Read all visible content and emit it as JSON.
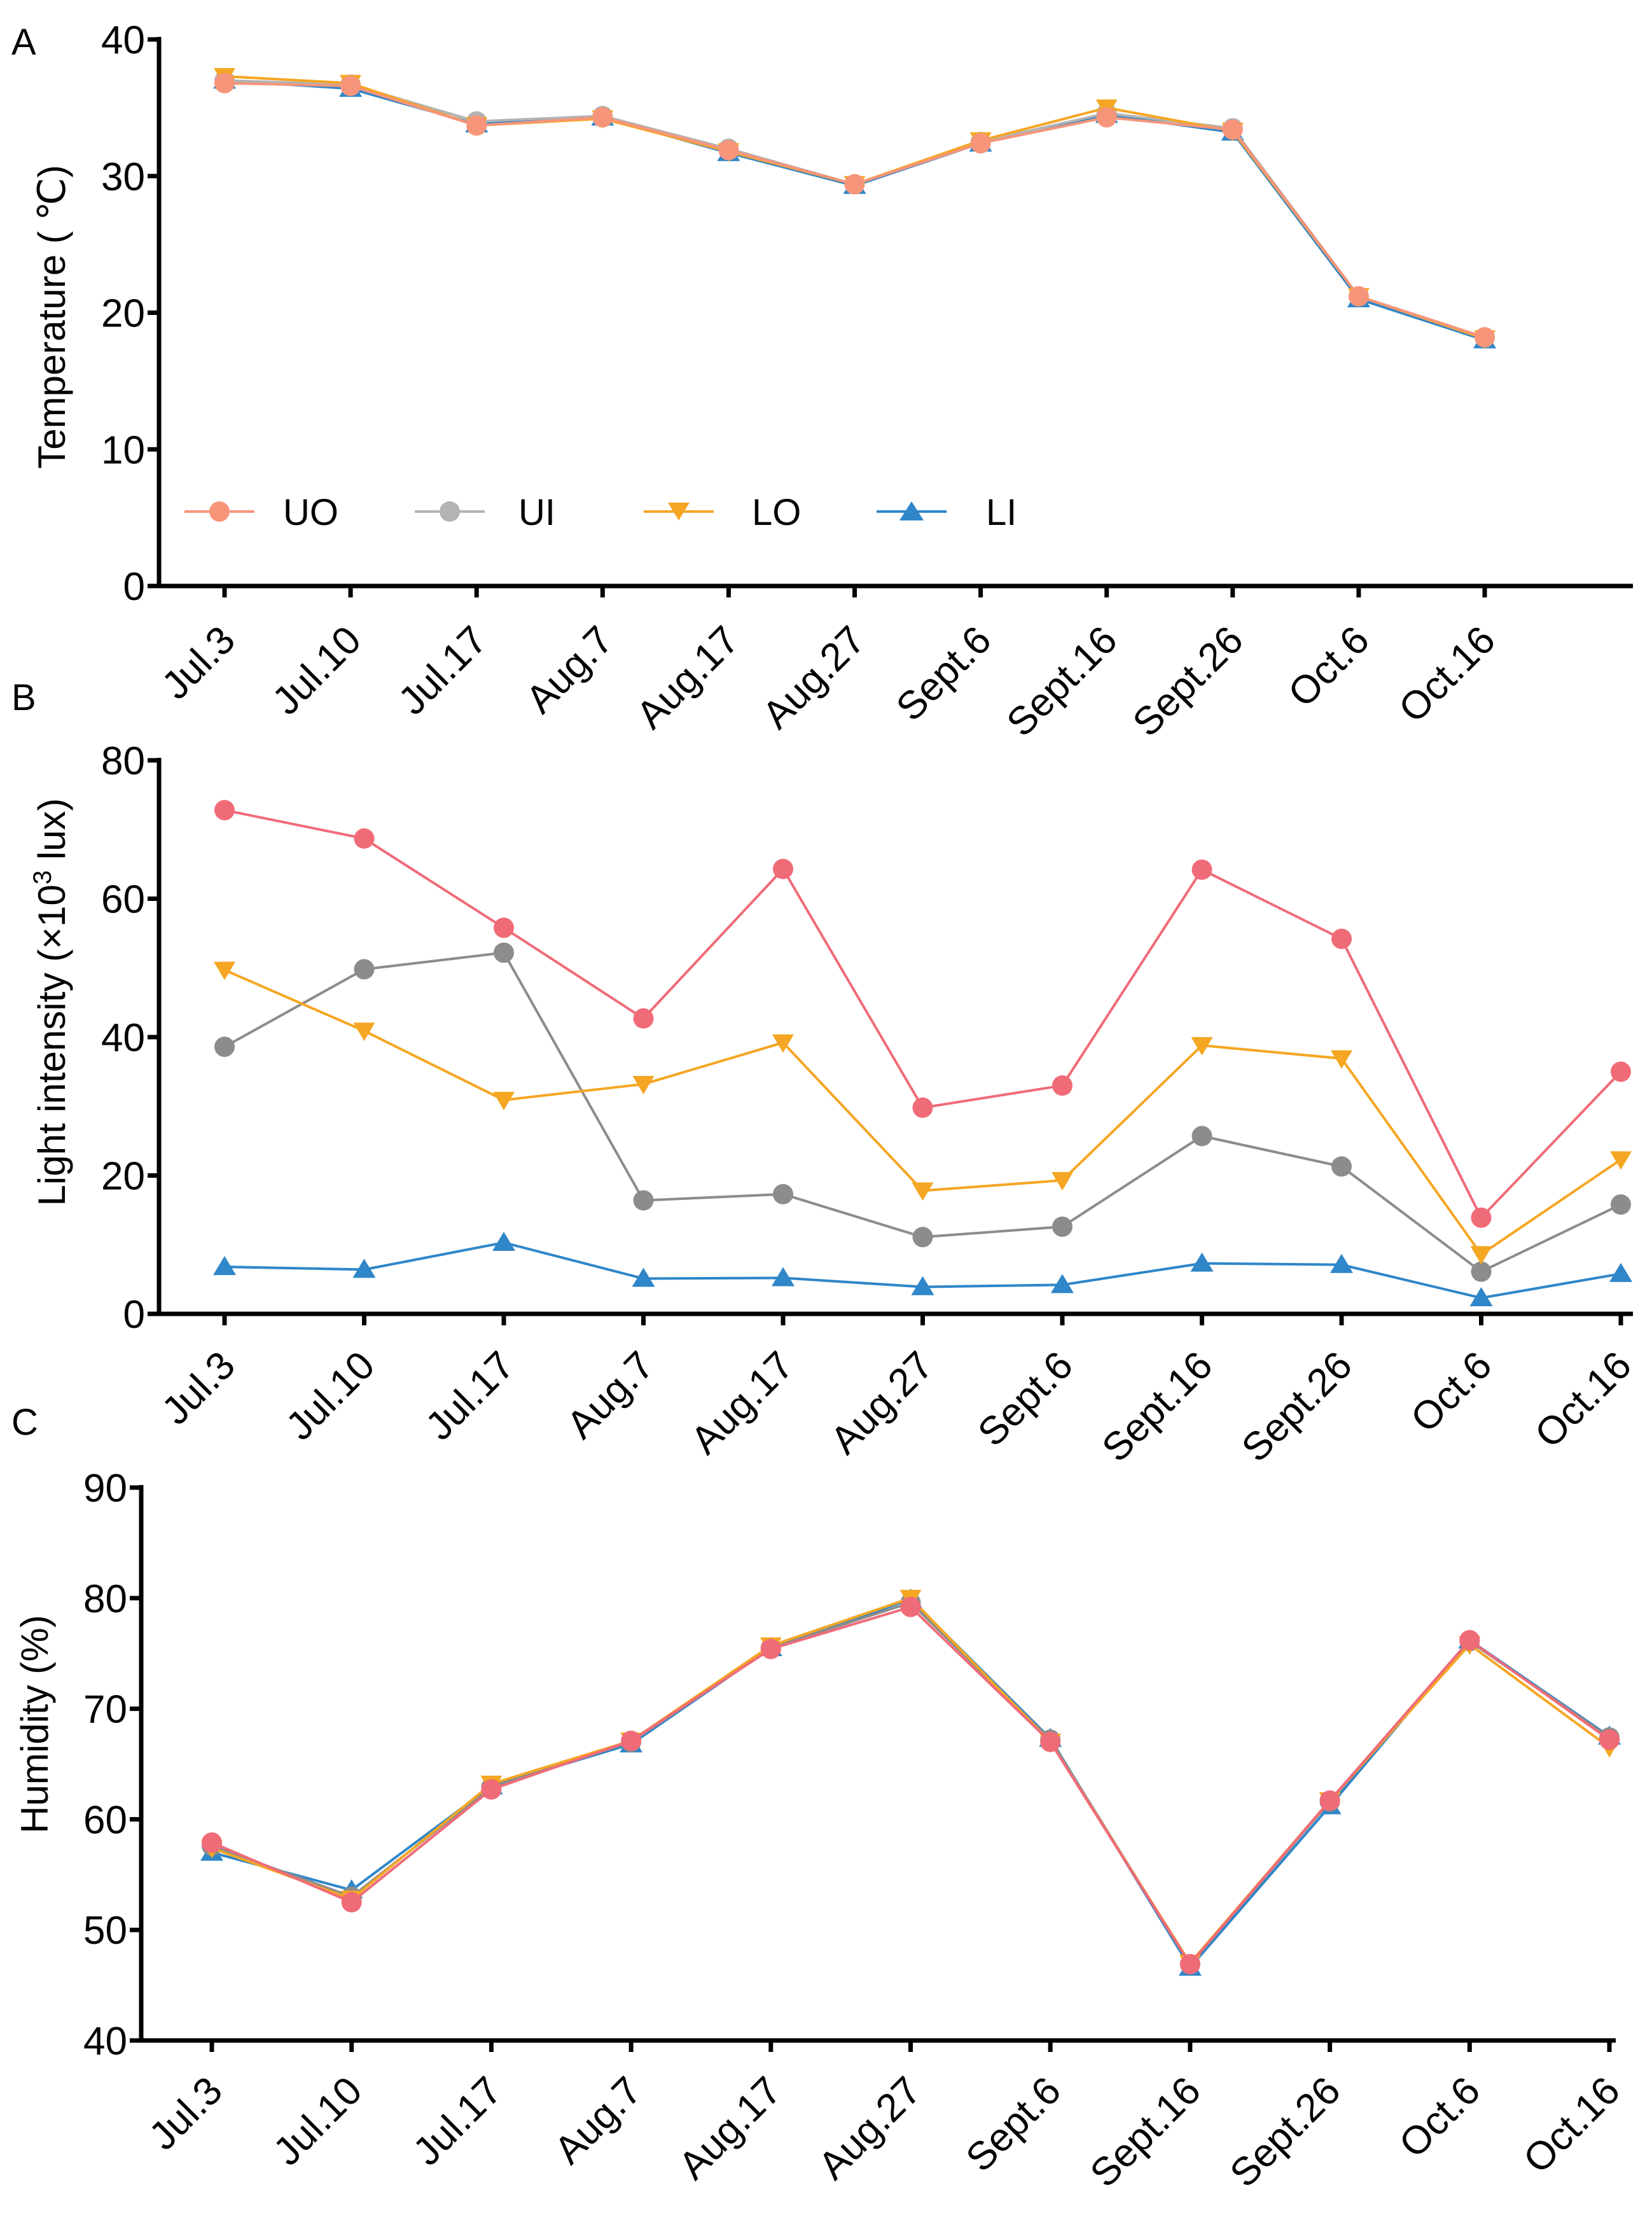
{
  "panels": {
    "A": {
      "letter": "A"
    },
    "B": {
      "letter": "B"
    },
    "C": {
      "letter": "C"
    }
  },
  "chart_data": [
    {
      "id": "A",
      "type": "line",
      "title": "",
      "xlabel": "",
      "ylabel": "Temperature ( ℃)",
      "ylim": [
        0,
        40
      ],
      "yticks": [
        0,
        10,
        20,
        30,
        40
      ],
      "categories": [
        "Jul.3",
        "Jul.10",
        "Jul.17",
        "Aug.7",
        "Aug.17",
        "Aug.27",
        "Sept.6",
        "Sept.16",
        "Sept.26",
        "Oct.6",
        "Oct.16"
      ],
      "grid": false,
      "legend": {
        "placement": "bottom-left",
        "orientation": "horizontal"
      },
      "series": [
        {
          "name": "LI",
          "color": "#2F86C8",
          "marker": "triangle-up",
          "values": [
            37.0,
            36.4,
            33.8,
            34.3,
            31.7,
            29.3,
            32.4,
            34.5,
            33.2,
            21.0,
            18.0
          ]
        },
        {
          "name": "UI",
          "color": "#B3B3B3",
          "marker": "circle",
          "values": [
            37.0,
            36.7,
            34.0,
            34.4,
            32.0,
            29.4,
            32.5,
            34.6,
            33.5,
            21.2,
            18.2
          ]
        },
        {
          "name": "LO",
          "color": "#F5A623",
          "marker": "triangle-down",
          "values": [
            37.3,
            36.8,
            33.7,
            34.2,
            31.8,
            29.4,
            32.6,
            35.0,
            33.3,
            21.2,
            18.1
          ]
        },
        {
          "name": "UO",
          "color": "#F7957A",
          "marker": "circle",
          "values": [
            36.8,
            36.6,
            33.7,
            34.3,
            31.9,
            29.4,
            32.4,
            34.3,
            33.4,
            21.2,
            18.2
          ]
        }
      ],
      "legend_order": [
        "UO",
        "UI",
        "LO",
        "LI"
      ]
    },
    {
      "id": "B",
      "type": "line",
      "title": "",
      "xlabel": "",
      "ylabel": "Light intensity (×10",
      "ylabel_sup": "3",
      "ylabel_suffix": " lux)",
      "ylim": [
        0,
        80
      ],
      "yticks": [
        0,
        20,
        40,
        60,
        80
      ],
      "categories": [
        "Jul.3",
        "Jul.10",
        "Jul.17",
        "Aug.7",
        "Aug.17",
        "Aug.27",
        "Sept.6",
        "Sept.16",
        "Sept.26",
        "Oct.6",
        "Oct.16"
      ],
      "grid": false,
      "series": [
        {
          "name": "LI",
          "color": "#2F86C8",
          "marker": "triangle-up",
          "values": [
            6.8,
            6.4,
            10.3,
            5.1,
            5.2,
            3.9,
            4.2,
            7.3,
            7.1,
            2.3,
            5.8
          ]
        },
        {
          "name": "UI",
          "color": "#8C8C8C",
          "marker": "circle",
          "values": [
            38.6,
            49.8,
            52.2,
            16.4,
            17.3,
            11.1,
            12.6,
            25.7,
            21.3,
            6.1,
            15.8
          ]
        },
        {
          "name": "LO",
          "color": "#F5A623",
          "marker": "triangle-down",
          "values": [
            49.7,
            40.9,
            30.9,
            33.2,
            39.2,
            17.8,
            19.3,
            38.8,
            36.9,
            8.6,
            22.3
          ]
        },
        {
          "name": "UO",
          "color": "#F06B78",
          "marker": "circle",
          "values": [
            72.8,
            68.7,
            55.8,
            42.7,
            64.3,
            29.8,
            33.0,
            64.2,
            54.2,
            13.9,
            35.0
          ]
        }
      ]
    },
    {
      "id": "C",
      "type": "line",
      "title": "",
      "xlabel": "",
      "ylabel": "Humidity (%)",
      "ylim": [
        40,
        90
      ],
      "yticks": [
        40,
        50,
        60,
        70,
        80,
        90
      ],
      "categories": [
        "Jul.3",
        "Jul.10",
        "Jul.17",
        "Aug.7",
        "Aug.17",
        "Aug.27",
        "Sept.6",
        "Sept.16",
        "Sept.26",
        "Oct.6",
        "Oct.16"
      ],
      "grid": false,
      "series": [
        {
          "name": "LI",
          "color": "#2F86C8",
          "marker": "triangle-up",
          "values": [
            57.0,
            53.6,
            63.0,
            66.8,
            75.5,
            79.9,
            67.3,
            46.6,
            61.2,
            76.2,
            67.5
          ]
        },
        {
          "name": "UI",
          "color": "#8C8C8C",
          "marker": "circle",
          "values": [
            57.6,
            53.0,
            62.9,
            67.0,
            75.5,
            79.6,
            67.2,
            46.9,
            61.6,
            76.1,
            67.4
          ]
        },
        {
          "name": "LO",
          "color": "#F5A623",
          "marker": "triangle-down",
          "values": [
            57.4,
            52.8,
            63.2,
            67.1,
            75.7,
            80.0,
            67.0,
            47.0,
            61.7,
            75.8,
            66.5
          ]
        },
        {
          "name": "UO",
          "color": "#F06B78",
          "marker": "circle",
          "values": [
            57.9,
            52.5,
            62.7,
            67.1,
            75.4,
            79.2,
            67.0,
            46.9,
            61.7,
            76.2,
            67.2
          ]
        }
      ]
    }
  ]
}
